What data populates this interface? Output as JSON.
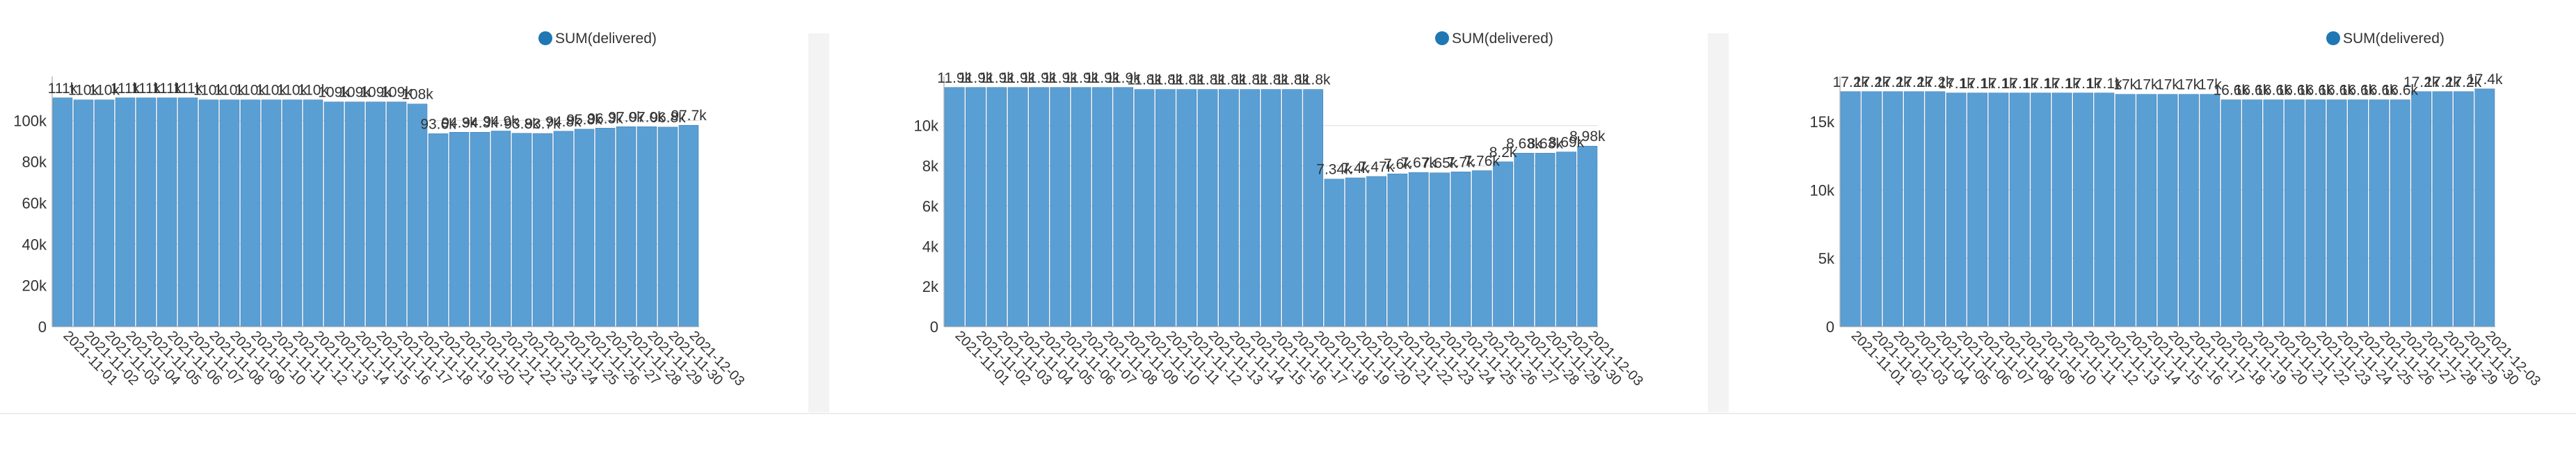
{
  "charts": [
    {
      "legend_label": "SUM(delivered)",
      "value_labels": [
        "111k",
        "110k",
        "110k",
        "111k",
        "111k",
        "111k",
        "111k",
        "110k",
        "110k",
        "110k",
        "110k",
        "110k",
        "110k",
        "109k",
        "109k",
        "109k",
        "109k",
        "108k",
        "93.6k",
        "94.3k",
        "94.3k",
        "94.9k",
        "93.8k",
        "93.7k",
        "94.8k",
        "95.8k",
        "96.3k",
        "97.0k",
        "97.0k",
        "96.8k",
        "97.7k"
      ],
      "colors": {
        "bar": "#5a9fd4",
        "bar_edge": "#3e7fb7",
        "grid": "#dcdcdc",
        "text": "#333333"
      }
    },
    {
      "legend_label": "SUM(delivered)",
      "value_labels": [
        "11.9k",
        "11.9k",
        "11.9k",
        "11.9k",
        "11.9k",
        "11.9k",
        "11.9k",
        "11.9k",
        "11.9k",
        "11.8k",
        "11.8k",
        "11.8k",
        "11.8k",
        "11.8k",
        "11.8k",
        "11.8k",
        "11.8k",
        "11.8k",
        "7.34k",
        "7.4k",
        "7.47k",
        "7.6k",
        "7.67k",
        "7.65k",
        "7.7k",
        "7.76k",
        "8.2k",
        "8.63k",
        "8.63k",
        "8.69k",
        "8.98k"
      ],
      "colors": {
        "bar": "#5a9fd4",
        "bar_edge": "#3e7fb7",
        "grid": "#dcdcdc",
        "text": "#333333"
      }
    },
    {
      "legend_label": "SUM(delivered)",
      "value_labels": [
        "17.2k",
        "17.2k",
        "17.2k",
        "17.2k",
        "17.2k",
        "17.1k",
        "17.1k",
        "17.1k",
        "17.1k",
        "17.1k",
        "17.1k",
        "17.1k",
        "17.1k",
        "17k",
        "17k",
        "17k",
        "17k",
        "17k",
        "16.6k",
        "16.6k",
        "16.6k",
        "16.6k",
        "16.6k",
        "16.6k",
        "16.6k",
        "16.6k",
        "16.6k",
        "17.2k",
        "17.2k",
        "17.2k",
        "17.4k"
      ],
      "colors": {
        "bar": "#5a9fd4",
        "bar_edge": "#3e7fb7",
        "grid": "#dcdcdc",
        "text": "#333333"
      }
    }
  ],
  "chart_data": [
    {
      "type": "bar",
      "categories": [
        "2021-11-01",
        "2021-11-02",
        "2021-11-03",
        "2021-11-04",
        "2021-11-05",
        "2021-11-06",
        "2021-11-07",
        "2021-11-08",
        "2021-11-09",
        "2021-11-10",
        "2021-11-11",
        "2021-11-12",
        "2021-11-13",
        "2021-11-14",
        "2021-11-15",
        "2021-11-16",
        "2021-11-17",
        "2021-11-18",
        "2021-11-19",
        "2021-11-20",
        "2021-11-21",
        "2021-11-22",
        "2021-11-23",
        "2021-11-24",
        "2021-11-25",
        "2021-11-26",
        "2021-11-27",
        "2021-11-28",
        "2021-11-29",
        "2021-11-30",
        "2021-12-03"
      ],
      "series": [
        {
          "name": "SUM(delivered)",
          "values": [
            111000,
            110000,
            110000,
            111000,
            111000,
            111000,
            111000,
            110000,
            110000,
            110000,
            110000,
            110000,
            110000,
            109000,
            109000,
            109000,
            109000,
            108000,
            93600,
            94300,
            94300,
            94900,
            93800,
            93700,
            94800,
            95800,
            96300,
            97000,
            97000,
            96800,
            97700
          ]
        }
      ],
      "yticks": [
        "0",
        "20k",
        "40k",
        "60k",
        "80k",
        "100k"
      ],
      "ylim": [
        0,
        118000
      ],
      "grid": true,
      "legend_position": "top-right"
    },
    {
      "type": "bar",
      "categories": [
        "2021-11-01",
        "2021-11-02",
        "2021-11-03",
        "2021-11-04",
        "2021-11-05",
        "2021-11-06",
        "2021-11-07",
        "2021-11-08",
        "2021-11-09",
        "2021-11-10",
        "2021-11-11",
        "2021-11-12",
        "2021-11-13",
        "2021-11-14",
        "2021-11-15",
        "2021-11-16",
        "2021-11-17",
        "2021-11-18",
        "2021-11-19",
        "2021-11-20",
        "2021-11-21",
        "2021-11-22",
        "2021-11-23",
        "2021-11-24",
        "2021-11-25",
        "2021-11-26",
        "2021-11-27",
        "2021-11-28",
        "2021-11-29",
        "2021-11-30",
        "2021-12-03"
      ],
      "series": [
        {
          "name": "SUM(delivered)",
          "values": [
            11900,
            11900,
            11900,
            11900,
            11900,
            11900,
            11900,
            11900,
            11900,
            11800,
            11800,
            11800,
            11800,
            11800,
            11800,
            11800,
            11800,
            11800,
            7340,
            7400,
            7470,
            7600,
            7670,
            7650,
            7700,
            7760,
            8200,
            8630,
            8630,
            8690,
            8980
          ]
        }
      ],
      "yticks": [
        "0",
        "2k",
        "4k",
        "6k",
        "8k",
        "10k"
      ],
      "ylim": [
        0,
        12100
      ],
      "grid": true,
      "legend_position": "top-right"
    },
    {
      "type": "bar",
      "categories": [
        "2021-11-01",
        "2021-11-02",
        "2021-11-03",
        "2021-11-04",
        "2021-11-05",
        "2021-11-06",
        "2021-11-07",
        "2021-11-08",
        "2021-11-09",
        "2021-11-10",
        "2021-11-11",
        "2021-11-12",
        "2021-11-13",
        "2021-11-14",
        "2021-11-15",
        "2021-11-16",
        "2021-11-17",
        "2021-11-18",
        "2021-11-19",
        "2021-11-20",
        "2021-11-21",
        "2021-11-22",
        "2021-11-23",
        "2021-11-24",
        "2021-11-25",
        "2021-11-26",
        "2021-11-27",
        "2021-11-28",
        "2021-11-29",
        "2021-11-30",
        "2021-12-03"
      ],
      "series": [
        {
          "name": "SUM(delivered)",
          "values": [
            17200,
            17200,
            17200,
            17200,
            17200,
            17100,
            17100,
            17100,
            17100,
            17100,
            17100,
            17100,
            17100,
            17000,
            17000,
            17000,
            17000,
            17000,
            16600,
            16600,
            16600,
            16600,
            16600,
            16600,
            16600,
            16600,
            16600,
            17200,
            17200,
            17200,
            17400
          ]
        }
      ],
      "yticks": [
        "0",
        "5k",
        "10k",
        "15k"
      ],
      "ylim": [
        0,
        17800
      ],
      "grid": true,
      "legend_position": "top-right"
    }
  ]
}
